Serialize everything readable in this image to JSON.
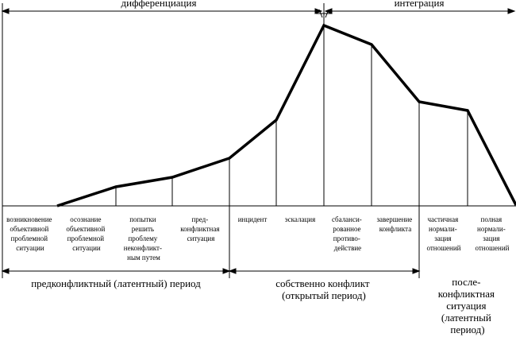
{
  "top_phases": {
    "left": "дифференциация",
    "right": "интеграция"
  },
  "stages": [
    {
      "lines": [
        "возникновение",
        "объективной",
        "проблемной",
        "ситуации"
      ]
    },
    {
      "lines": [
        "осознание",
        "объективной",
        "проблемной",
        "ситуации"
      ]
    },
    {
      "lines": [
        "попытки",
        "решить",
        "проблему",
        "неконфликт-",
        "ным путем"
      ]
    },
    {
      "lines": [
        "пред-",
        "конфликтная",
        "ситуация"
      ]
    },
    {
      "lines": [
        "инцидент"
      ]
    },
    {
      "lines": [
        "эскалация"
      ]
    },
    {
      "lines": [
        "сбаланси-",
        "рованное",
        "противо-",
        "действие"
      ]
    },
    {
      "lines": [
        "завершение",
        "конфликта"
      ]
    },
    {
      "lines": [
        "частичная",
        "нормали-",
        "зация",
        "отношений"
      ]
    },
    {
      "lines": [
        "полная",
        "нормали-",
        "зация",
        "отношений"
      ]
    }
  ],
  "periods": [
    {
      "lines": [
        "предконфликтный (латентный) период"
      ]
    },
    {
      "lines": [
        "собственно конфликт",
        "(открытый период)"
      ]
    },
    {
      "lines": [
        "после-",
        "конфликтная",
        "ситуация",
        "(латентный",
        "период)"
      ]
    }
  ]
}
